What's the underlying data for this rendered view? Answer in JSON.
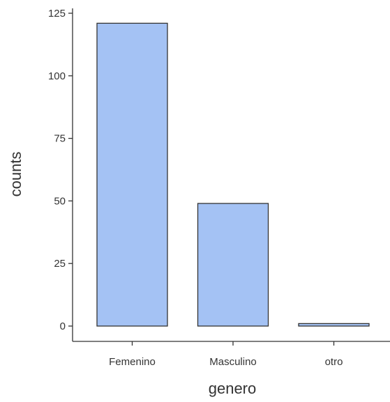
{
  "chart_data": {
    "type": "bar",
    "categories": [
      "Femenino",
      "Masculino",
      "otro"
    ],
    "values": [
      121,
      49,
      1
    ],
    "xlabel": "genero",
    "ylabel": "counts",
    "ylim": [
      0,
      125
    ],
    "yticks": [
      0,
      25,
      50,
      75,
      100,
      125
    ],
    "grid": false,
    "legend": "none",
    "colors": {
      "bar_fill": "#a4c2f4",
      "bar_stroke": "#333333",
      "axis": "#333333"
    }
  }
}
